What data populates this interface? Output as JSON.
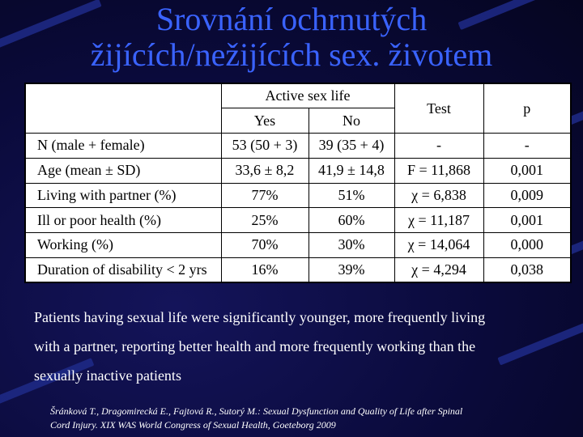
{
  "slide": {
    "title_line1": "Srovnání ochrnutých",
    "title_line2": "žijících/nežijících sex. životem"
  },
  "table": {
    "group_header": "Active sex life",
    "col_yes": "Yes",
    "col_no": "No",
    "col_test": "Test",
    "col_p": "p",
    "rows": [
      {
        "label": "N (male + female)",
        "yes": "53 (50 + 3)",
        "no": "39 (35 + 4)",
        "test": "-",
        "p": "-"
      },
      {
        "label": "Age (mean ± SD)",
        "yes": "33,6 ± 8,2",
        "no": "41,9 ± 14,8",
        "test": "F = 11,868",
        "p": "0,001"
      },
      {
        "label": "Living with partner (%)",
        "yes": "77%",
        "no": "51%",
        "test": "χ = 6,838",
        "p": "0,009"
      },
      {
        "label": "Ill or poor health (%)",
        "yes": "25%",
        "no": "60%",
        "test": "χ = 11,187",
        "p": "0,001"
      },
      {
        "label": "Working (%)",
        "yes": "70%",
        "no": "30%",
        "test": "χ = 14,064",
        "p": "0,000"
      },
      {
        "label": "Duration of disability < 2 yrs",
        "yes": "16%",
        "no": "39%",
        "test": "χ = 4,294",
        "p": "0,038"
      }
    ]
  },
  "summary": {
    "line1": "Patients having sexual life were significantly younger, more frequently living",
    "line2": "with a partner, reporting better health and more frequently working than the",
    "line3": "sexually inactive patients"
  },
  "citation": {
    "line1": "Šránková T., Dragomirecká E., Fajtová R., Sutorý M.: Sexual Dysfunction and Quality of Life after Spinal",
    "line2": "Cord Injury. XIX WAS World Congress of Sexual Health, Goeteborg 2009"
  },
  "colors": {
    "background": "#0a0a3a",
    "title": "#3a63ff",
    "stripe": "#1e2a88"
  }
}
